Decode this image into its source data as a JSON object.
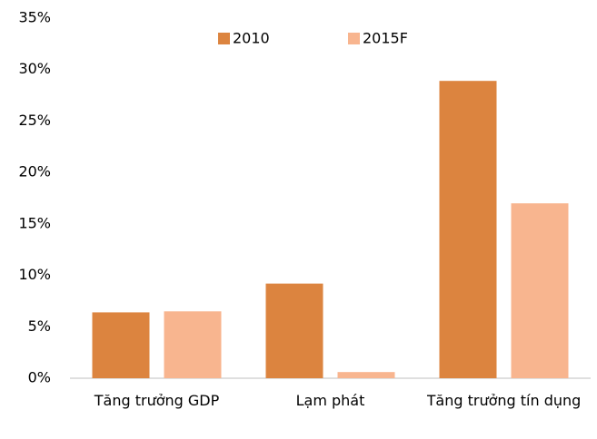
{
  "chart_data": {
    "type": "bar",
    "categories": [
      "Tăng trưởng GDP",
      "Lạm phát",
      "Tăng trưởng tín dụng"
    ],
    "series": [
      {
        "name": "2010",
        "color": "#dc843f",
        "values": [
          6.4,
          9.2,
          28.9
        ]
      },
      {
        "name": "2015F",
        "color": "#f8b58f",
        "values": [
          6.5,
          0.6,
          17.0
        ]
      }
    ],
    "ylim": [
      0,
      35
    ],
    "yticks": [
      {
        "value": 0,
        "label": "0%"
      },
      {
        "value": 5,
        "label": "5%"
      },
      {
        "value": 10,
        "label": "10%"
      },
      {
        "value": 15,
        "label": "15%"
      },
      {
        "value": 20,
        "label": "20%"
      },
      {
        "value": 25,
        "label": "25%"
      },
      {
        "value": 30,
        "label": "30%"
      },
      {
        "value": 35,
        "label": "35%"
      }
    ],
    "legend": "top",
    "grid": false
  }
}
